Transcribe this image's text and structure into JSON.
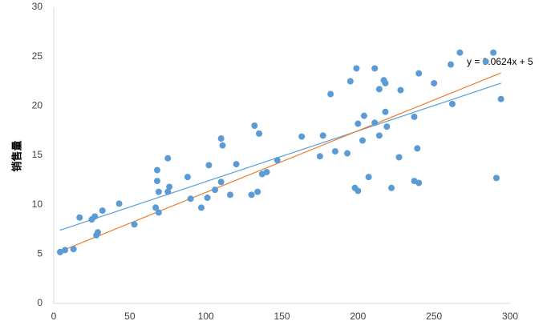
{
  "chart_data": {
    "type": "scatter",
    "y_label": "销售量",
    "annotation": "y = 0.0624x + 5",
    "xlim": [
      0,
      300
    ],
    "xticks": [
      0,
      50,
      100,
      150,
      200,
      250,
      300
    ],
    "ylim": [
      0,
      30
    ],
    "yticks": [
      0,
      5,
      10,
      15,
      20,
      25,
      30
    ],
    "grid": false,
    "series": [
      {
        "color": "#5b9bd5",
        "x": [
          4.2,
          7.4,
          13,
          17,
          25,
          27,
          28,
          29,
          32,
          43,
          53,
          67,
          69,
          68,
          68,
          69,
          75,
          76,
          75,
          88,
          90,
          97,
          101,
          102,
          106,
          110,
          110,
          111,
          116,
          120,
          130,
          132,
          134,
          135,
          137,
          140,
          147,
          163,
          175,
          177,
          182,
          185,
          193,
          195,
          198,
          199,
          200,
          200,
          203,
          204,
          207,
          211,
          211,
          214,
          214,
          217,
          218,
          218,
          219,
          222,
          227,
          228,
          237,
          237,
          240,
          239,
          240,
          250,
          261,
          262,
          267,
          284,
          289,
          291,
          294
        ],
        "values": [
          5.2,
          5.4,
          5.5,
          8.7,
          8.5,
          8.8,
          6.9,
          7.2,
          9.4,
          10.1,
          8.0,
          9.7,
          9.2,
          12.4,
          13.5,
          11.3,
          14.7,
          11.8,
          11.3,
          12.8,
          10.6,
          9.7,
          10.7,
          14.0,
          11.5,
          12.3,
          16.7,
          16.0,
          11.0,
          14.1,
          11.0,
          18.0,
          11.3,
          17.2,
          13.1,
          13.3,
          14.5,
          16.9,
          14.9,
          17.0,
          21.2,
          15.4,
          15.2,
          22.5,
          11.7,
          23.8,
          11.4,
          18.2,
          16.5,
          19.0,
          12.8,
          18.3,
          23.8,
          21.7,
          17.0,
          22.6,
          22.3,
          19.4,
          17.9,
          11.7,
          14.8,
          21.6,
          18.9,
          12.4,
          12.2,
          15.7,
          23.3,
          22.3,
          24.2,
          20.2,
          25.4,
          24.5,
          25.4,
          12.7,
          20.7
        ]
      }
    ],
    "trendlines": [
      {
        "color": "#5b9bd5",
        "x": [
          4,
          294
        ],
        "values": [
          7.4,
          22.3
        ]
      },
      {
        "color": "#ed7d31",
        "x": [
          4,
          294
        ],
        "values": [
          5.25,
          23.35
        ]
      }
    ]
  }
}
